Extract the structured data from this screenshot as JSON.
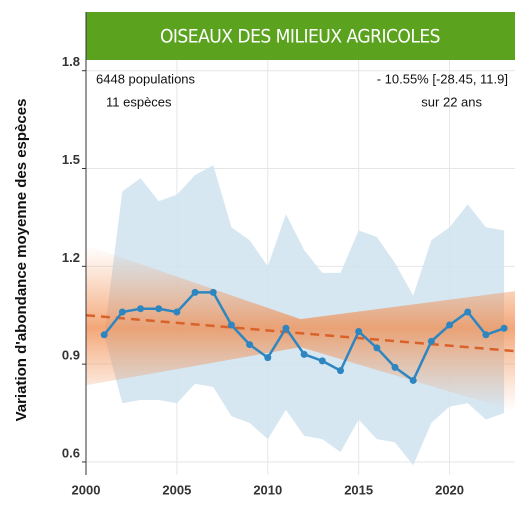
{
  "chart_data": {
    "type": "line",
    "title": "OISEAUX DES MILIEUX AGRICOLES",
    "ylabel": "Variation d'abondance moyenne des espèces",
    "annotations": [
      "6448  populations",
      "11 espèces",
      "- 10.55% [-28.45, 11.9]",
      "sur 22 ans"
    ],
    "x": [
      2001,
      2002,
      2003,
      2004,
      2005,
      2006,
      2007,
      2008,
      2009,
      2010,
      2011,
      2012,
      2013,
      2014,
      2015,
      2016,
      2017,
      2018,
      2019,
      2020,
      2021,
      2022,
      2023
    ],
    "values": [
      0.99,
      1.06,
      1.07,
      1.07,
      1.06,
      1.12,
      1.12,
      1.02,
      0.96,
      0.92,
      1.01,
      0.93,
      0.91,
      0.88,
      1.0,
      0.95,
      0.89,
      0.85,
      0.97,
      1.02,
      1.06,
      0.99,
      1.01
    ],
    "upper": [
      0.99,
      1.43,
      1.47,
      1.4,
      1.42,
      1.48,
      1.51,
      1.32,
      1.28,
      1.2,
      1.36,
      1.25,
      1.18,
      1.18,
      1.31,
      1.29,
      1.21,
      1.11,
      1.28,
      1.32,
      1.39,
      1.32,
      1.31
    ],
    "lower": [
      0.99,
      0.78,
      0.79,
      0.79,
      0.78,
      0.84,
      0.83,
      0.74,
      0.72,
      0.67,
      0.76,
      0.68,
      0.67,
      0.63,
      0.73,
      0.67,
      0.66,
      0.59,
      0.72,
      0.77,
      0.78,
      0.73,
      0.75
    ],
    "color": "#2e86c1",
    "band_color": "#cfe3f0",
    "trend": {
      "x": [
        2000,
        2023.6
      ],
      "values": [
        1.05,
        0.94
      ],
      "color": "#d9622b"
    },
    "xlim": [
      2000,
      2023.6
    ],
    "xticks": [
      2000,
      2005,
      2010,
      2015,
      2020
    ],
    "ylim": [
      0.56,
      1.98
    ],
    "yticks": [
      0.6,
      0.9,
      1.2,
      1.5,
      1.8
    ],
    "grid": true
  }
}
